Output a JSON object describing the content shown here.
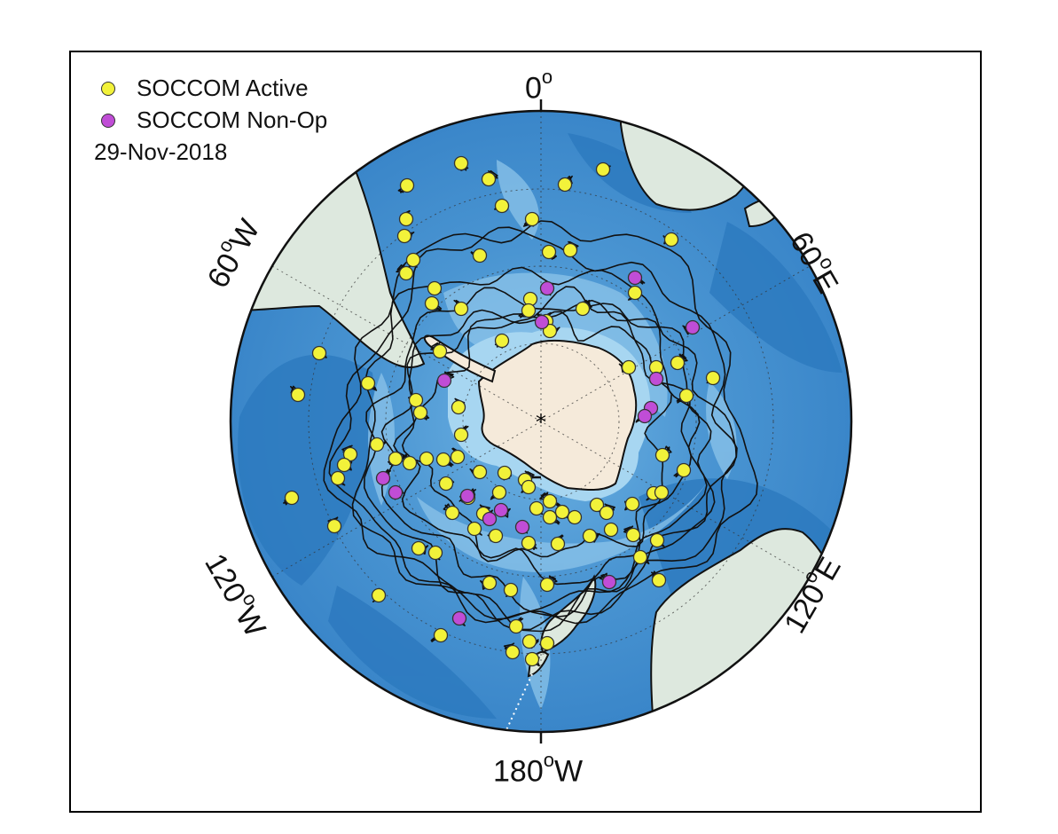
{
  "map": {
    "projection": "south-polar-stereographic",
    "labels": {
      "top": "0",
      "upper_left": "60",
      "upper_left_dir": "W",
      "upper_right": "60",
      "upper_right_dir": "E",
      "lower_left": "120",
      "lower_left_dir": "W",
      "lower_right": "120",
      "lower_right_dir": "E",
      "bottom": "180",
      "bottom_dir": "W",
      "degree": "o"
    },
    "colors": {
      "ocean_deep": "#2f7fc4",
      "ocean_mid": "#4c97d4",
      "ocean_shallow": "#8ec8ec",
      "land": "#dde8de",
      "ice": "#f6ecdd",
      "active_float": "#f2f23a",
      "nonop_float": "#c04dd6",
      "trajectory": "#111111"
    }
  },
  "legend": {
    "active": "SOCCOM Active",
    "nonop": "SOCCOM Non-Op",
    "date": "29-Nov-2018"
  }
}
